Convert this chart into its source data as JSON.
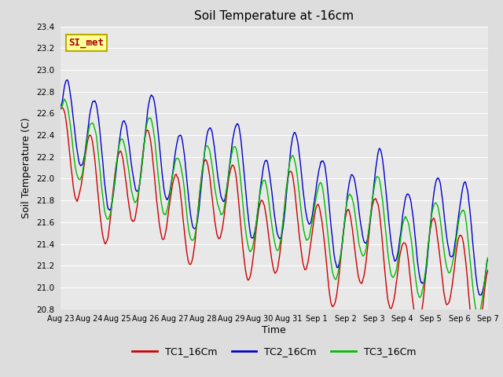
{
  "title": "Soil Temperature at -16cm",
  "xlabel": "Time",
  "ylabel": "Soil Temperature (C)",
  "ylim": [
    20.8,
    23.4
  ],
  "yticks": [
    20.8,
    21.0,
    21.2,
    21.4,
    21.6,
    21.8,
    22.0,
    22.2,
    22.4,
    22.6,
    22.8,
    23.0,
    23.2,
    23.4
  ],
  "bg_color": "#dddddd",
  "plot_bg_color": "#e8e8e8",
  "series": {
    "TC1_16Cm": {
      "color": "#cc0000",
      "label": "TC1_16Cm"
    },
    "TC2_16Cm": {
      "color": "#0000cc",
      "label": "TC2_16Cm"
    },
    "TC3_16Cm": {
      "color": "#00bb00",
      "label": "TC3_16Cm"
    }
  },
  "legend_label": "SI_met",
  "legend_bg": "#ffff99",
  "legend_border": "#bbaa00",
  "legend_text_color": "#aa0000",
  "x_tick_labels": [
    "Aug 23",
    "Aug 24",
    "Aug 25",
    "Aug 26",
    "Aug 27",
    "Aug 28",
    "Aug 29",
    "Aug 30",
    "Aug 31",
    "Sep 1",
    "Sep 2",
    "Sep 3",
    "Sep 4",
    "Sep 5",
    "Sep 6",
    "Sep 7"
  ],
  "n_points": 720
}
